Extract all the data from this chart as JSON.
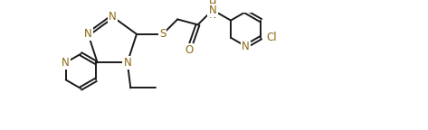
{
  "bg_color": "#ffffff",
  "line_color": "#1a1a1a",
  "atom_color": "#8B6914",
  "line_width": 1.4,
  "font_size": 8.5,
  "fig_width": 4.73,
  "fig_height": 1.44,
  "dpi": 100,
  "xlim": [
    0,
    4.73
  ],
  "ylim": [
    0,
    1.44
  ]
}
